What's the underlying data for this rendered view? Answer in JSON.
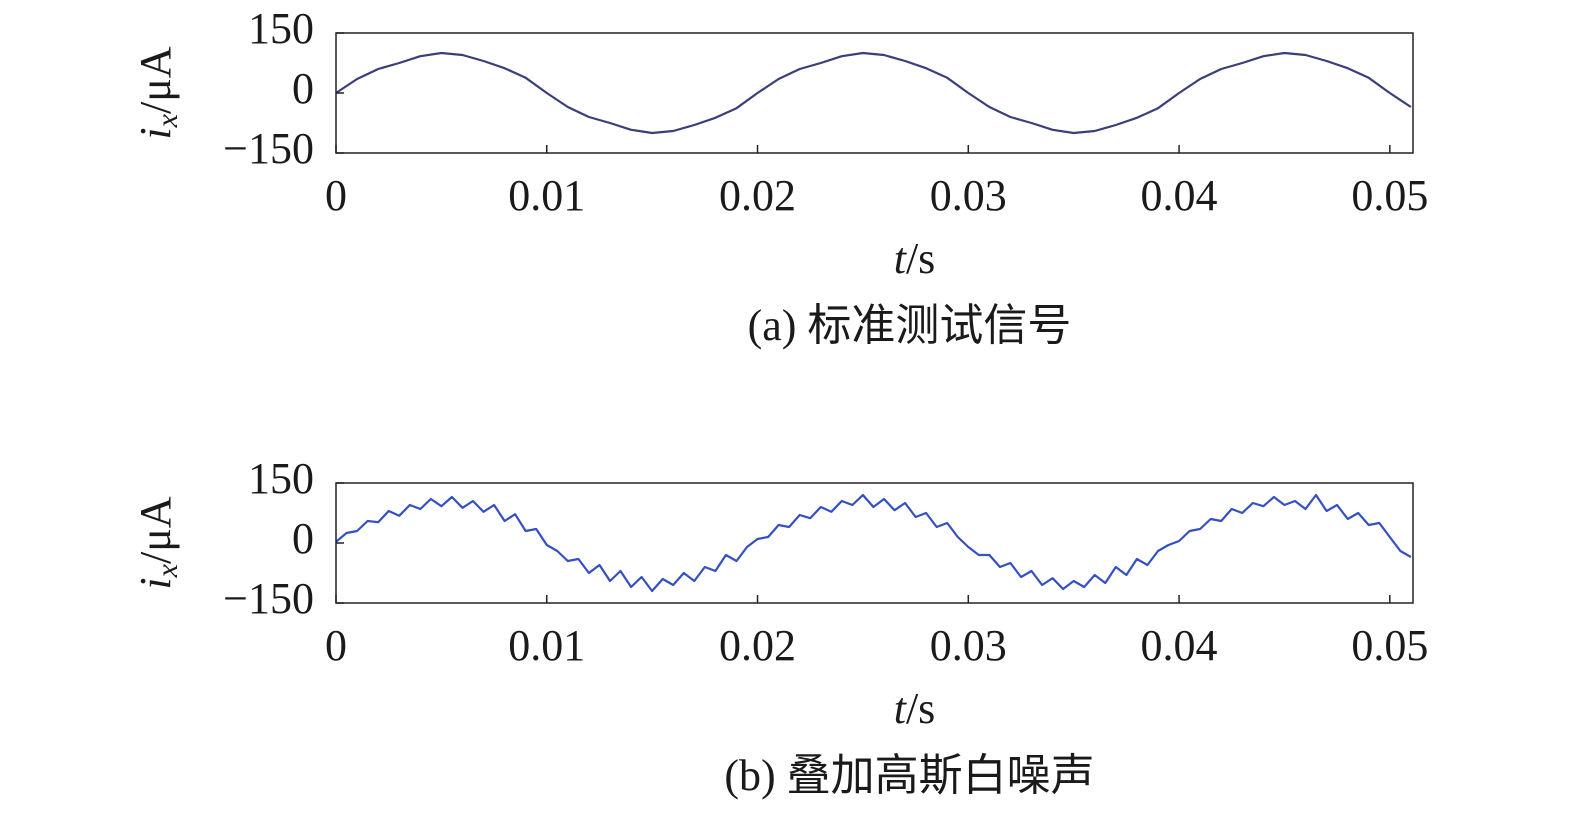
{
  "chart_data": [
    {
      "type": "line",
      "caption": "(a) 标准测试信号",
      "xlabel": {
        "var": "t",
        "unit": "/s"
      },
      "ylabel": {
        "var": "i",
        "sub": "x",
        "unit": "/μA"
      },
      "color": "#3a3f7a",
      "x": [
        0,
        0.001,
        0.002,
        0.003,
        0.004,
        0.005,
        0.006,
        0.007,
        0.008,
        0.009,
        0.01,
        0.011,
        0.012,
        0.013,
        0.014,
        0.015,
        0.016,
        0.017,
        0.018,
        0.019,
        0.02,
        0.021,
        0.022,
        0.023,
        0.024,
        0.025,
        0.026,
        0.027,
        0.028,
        0.029,
        0.03,
        0.031,
        0.032,
        0.033,
        0.034,
        0.035,
        0.036,
        0.037,
        0.038,
        0.039,
        0.04,
        0.041,
        0.042,
        0.043,
        0.044,
        0.045,
        0.046,
        0.047,
        0.048,
        0.049,
        0.05,
        0.051
      ],
      "values": [
        0,
        35,
        60,
        75,
        92,
        100,
        95,
        80,
        62,
        38,
        0,
        -35,
        -60,
        -75,
        -92,
        -100,
        -95,
        -80,
        -62,
        -38,
        0,
        35,
        60,
        75,
        92,
        100,
        95,
        80,
        62,
        38,
        0,
        -35,
        -60,
        -75,
        -92,
        -100,
        -95,
        -80,
        -62,
        -38,
        0,
        35,
        60,
        75,
        92,
        100,
        95,
        80,
        62,
        38,
        0,
        -35
      ],
      "xlim": [
        0,
        0.0511
      ],
      "ylim": [
        -150,
        150
      ],
      "xticks": [
        0,
        0.01,
        0.02,
        0.03,
        0.04,
        0.05
      ],
      "yticks": [
        {
          "value": -150,
          "label": "−150"
        },
        0,
        150
      ]
    },
    {
      "type": "line",
      "caption": "(b) 叠加高斯白噪声",
      "xlabel": {
        "var": "t",
        "unit": "/s"
      },
      "ylabel": {
        "var": "i",
        "sub": "x",
        "unit": "/μA"
      },
      "color": "#3550c0",
      "x": [
        0,
        0.0005,
        0.001,
        0.0015,
        0.002,
        0.0025,
        0.003,
        0.0035,
        0.004,
        0.0045,
        0.005,
        0.0055,
        0.006,
        0.0065,
        0.007,
        0.0075,
        0.008,
        0.0085,
        0.009,
        0.0095,
        0.01,
        0.0105,
        0.011,
        0.0115,
        0.012,
        0.0125,
        0.013,
        0.0135,
        0.014,
        0.0145,
        0.015,
        0.0155,
        0.016,
        0.0165,
        0.017,
        0.0175,
        0.018,
        0.0185,
        0.019,
        0.0195,
        0.02,
        0.0205,
        0.021,
        0.0215,
        0.022,
        0.0225,
        0.023,
        0.0235,
        0.024,
        0.0245,
        0.025,
        0.0255,
        0.026,
        0.0265,
        0.027,
        0.0275,
        0.028,
        0.0285,
        0.029,
        0.0295,
        0.03,
        0.0305,
        0.031,
        0.0315,
        0.032,
        0.0325,
        0.033,
        0.0335,
        0.034,
        0.0345,
        0.035,
        0.0355,
        0.036,
        0.0365,
        0.037,
        0.0375,
        0.038,
        0.0385,
        0.039,
        0.0395,
        0.04,
        0.0405,
        0.041,
        0.0415,
        0.042,
        0.0425,
        0.043,
        0.0435,
        0.044,
        0.0445,
        0.045,
        0.0455,
        0.046,
        0.0465,
        0.047,
        0.0475,
        0.048,
        0.0485,
        0.049,
        0.0495,
        0.05,
        0.0505,
        0.051
      ],
      "values": [
        3,
        25,
        30,
        55,
        52,
        80,
        68,
        95,
        85,
        110,
        92,
        115,
        88,
        105,
        78,
        95,
        55,
        72,
        30,
        35,
        -5,
        -20,
        -45,
        -40,
        -75,
        -55,
        -95,
        -70,
        -110,
        -85,
        -120,
        -90,
        -105,
        -75,
        -95,
        -60,
        -70,
        -30,
        -45,
        -10,
        10,
        15,
        45,
        40,
        70,
        62,
        90,
        78,
        105,
        95,
        120,
        90,
        110,
        82,
        100,
        65,
        75,
        40,
        50,
        15,
        -10,
        -30,
        -30,
        -60,
        -50,
        -85,
        -70,
        -105,
        -88,
        -115,
        -95,
        -110,
        -80,
        -100,
        -60,
        -80,
        -40,
        -55,
        -20,
        -5,
        5,
        30,
        35,
        60,
        55,
        85,
        75,
        100,
        92,
        115,
        95,
        105,
        85,
        120,
        80,
        95,
        60,
        75,
        45,
        50,
        15,
        -20,
        -35
      ],
      "xlim": [
        0,
        0.0511
      ],
      "ylim": [
        -150,
        150
      ],
      "xticks": [
        0,
        0.01,
        0.02,
        0.03,
        0.04,
        0.05
      ],
      "yticks": [
        {
          "value": -150,
          "label": "−150"
        },
        0,
        150
      ]
    }
  ]
}
